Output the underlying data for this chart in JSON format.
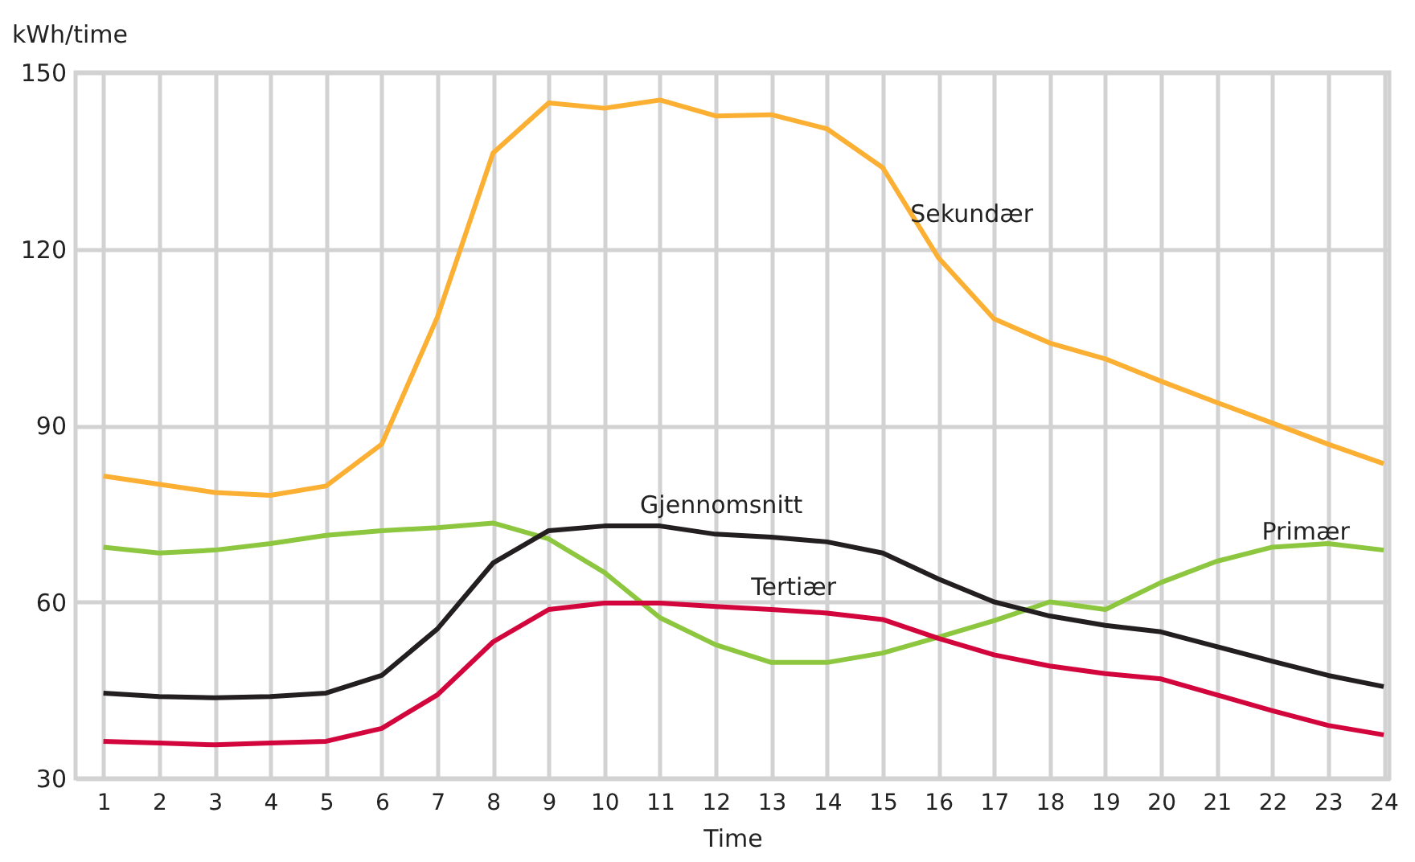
{
  "chart_data": {
    "type": "line",
    "xlabel": "Time",
    "ylabel": "kWh/time",
    "x": [
      1,
      2,
      3,
      4,
      5,
      6,
      7,
      8,
      9,
      10,
      11,
      12,
      13,
      14,
      15,
      16,
      17,
      18,
      19,
      20,
      21,
      22,
      23,
      24
    ],
    "xlim": [
      0.5,
      24.1
    ],
    "xticks": [
      1,
      2,
      3,
      4,
      5,
      6,
      7,
      8,
      9,
      10,
      11,
      12,
      13,
      14,
      15,
      16,
      17,
      18,
      19,
      20,
      21,
      22,
      23,
      24
    ],
    "ylim": [
      30,
      150
    ],
    "yticks": [
      30,
      60,
      90,
      120,
      150
    ],
    "grid": true,
    "legend": false,
    "marker": "none",
    "line_style": "solid",
    "series": [
      {
        "name": "Sekundær",
        "color": "#fbb033",
        "values": [
          81.4,
          80,
          78.6,
          78.1,
          79.7,
          86.8,
          108.4,
          136.3,
          144.8,
          143.9,
          145.3,
          142.6,
          142.8,
          140.4,
          133.8,
          118.5,
          108.1,
          104,
          101.3,
          97.5,
          93.9,
          90.4,
          86.8,
          83.5
        ]
      },
      {
        "name": "Primær",
        "color": "#8dc63f",
        "values": [
          69.3,
          68.3,
          68.8,
          69.9,
          71.3,
          72.1,
          72.6,
          73.4,
          70.7,
          65,
          57.3,
          52.7,
          49.7,
          49.7,
          51.3,
          54,
          56.8,
          60,
          58.7,
          63.3,
          66.9,
          69.3,
          69.9,
          68.8
        ]
      },
      {
        "name": "Gjennomsnitt",
        "color": "#231f20",
        "values": [
          44.5,
          43.9,
          43.7,
          43.9,
          44.5,
          47.5,
          55.4,
          66.6,
          72.1,
          72.9,
          72.9,
          71.5,
          71,
          70.2,
          68.3,
          63.9,
          60,
          57.6,
          56,
          54.9,
          52.4,
          49.9,
          47.5,
          45.6
        ]
      },
      {
        "name": "Tertiær",
        "color": "#d2063c",
        "values": [
          36.3,
          36,
          35.7,
          36,
          36.3,
          38.5,
          44.2,
          53.2,
          58.7,
          59.8,
          59.8,
          59.2,
          58.7,
          58.1,
          57,
          53.8,
          51,
          49.1,
          47.8,
          46.9,
          44.2,
          41.5,
          39,
          37.4
        ]
      }
    ]
  }
}
